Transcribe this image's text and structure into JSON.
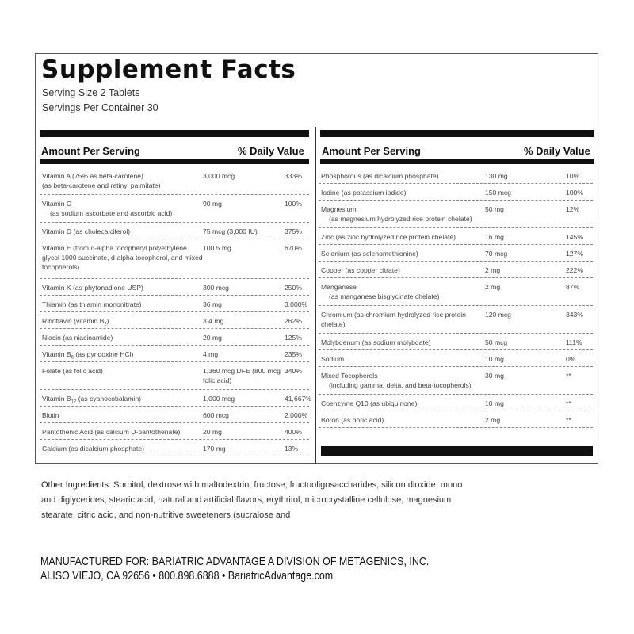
{
  "title": "Supplement Facts",
  "serving_size": "Serving Size  2 Tablets",
  "servings_per_container": "Servings Per Container  30",
  "headers": {
    "amount": "Amount Per Serving",
    "dv": "% Daily Value"
  },
  "left_rows": [
    {
      "name": "Vitamin A (75% as beta-carotene)",
      "sub_line": "(as beta-carotene and retinyl palmitate)",
      "amount": "3,000 mcg",
      "dv": "333%",
      "lines": 2
    },
    {
      "name": "Vitamin C",
      "sub_line": "(as sodium ascorbate and ascorbic acid)",
      "indent": true,
      "amount": "90 mg",
      "dv": "100%",
      "lines": 2
    },
    {
      "name": "Vitamin D (as cholecalciferol)",
      "amount": "75 mcg (3,000 IU)",
      "dv": "375%",
      "lines": 1
    },
    {
      "name": "Vitamin E (from d-alpha tocopheryl polyethylene glycol 1000 succinate, d-alpha tocopherol, and mixed tocopherols)",
      "amount": "100.5 mg",
      "dv": "670%",
      "lines": 3
    },
    {
      "name": "Vitamin K (as phytonadione USP)",
      "amount": "300 mcg",
      "dv": "250%",
      "lines": 1
    },
    {
      "name": "Thiamin (as thiamin mononitrate)",
      "amount": "36 mg",
      "dv": "3,000%",
      "lines": 1
    },
    {
      "name": "Riboflavin (vitamin B",
      "sub": "2",
      "name_end": ")",
      "amount": "3.4 mg",
      "dv": "262%",
      "lines": 1
    },
    {
      "name": "Niacin (as niacinamide)",
      "amount": "20 mg",
      "dv": "125%",
      "lines": 1
    },
    {
      "name": "Vitamin B",
      "sub": "6",
      "name_end": " (as pyridoxine HCl)",
      "amount": "4 mg",
      "dv": "235%",
      "lines": 1
    },
    {
      "name": "Folate (as folic acid)",
      "amount": "1,360 mcg DFE (800 mcg folic acid)",
      "dv": "340%",
      "lines": 2
    },
    {
      "name": "Vitamin B",
      "sub": "12",
      "name_end": " (as cyanocobalamin)",
      "amount": "1,000 mcg",
      "dv": "41,667%",
      "lines": 1
    },
    {
      "name": "Biotin",
      "amount": "600 mcg",
      "dv": "2,000%",
      "lines": 1
    },
    {
      "name": "Pantothenic Acid (as calcium D-pantothenate)",
      "amount": "20 mg",
      "dv": "400%",
      "lines": 1
    },
    {
      "name": "Calcium (as dicalcium phosphate)",
      "amount": "170 mg",
      "dv": "13%",
      "lines": 1
    }
  ],
  "right_rows": [
    {
      "name": "Phosphorous (as dicalcium phosphate)",
      "amount": "130 mg",
      "dv": "10%",
      "lines": 1
    },
    {
      "name": "Iodine (as potassium iodide)",
      "amount": "150 mcg",
      "dv": "100%",
      "lines": 1
    },
    {
      "name": "Magnesium",
      "sub_line": "(as magnesium hydrolyzed rice protein chelate)",
      "indent": true,
      "amount": "50 mg",
      "dv": "12%",
      "lines": 2
    },
    {
      "name": "Zinc (as zinc hydrolyzed rice protein chelate)",
      "amount": "16 mg",
      "dv": "145%",
      "lines": 1
    },
    {
      "name": "Selenium (as selenomethionine)",
      "amount": "70 mcg",
      "dv": "127%",
      "lines": 1
    },
    {
      "name": "Copper (as copper citrate)",
      "amount": "2 mg",
      "dv": "222%",
      "lines": 1
    },
    {
      "name": "Manganese",
      "sub_line": "(as manganese bisglycinate chelate)",
      "indent": true,
      "amount": "2 mg",
      "dv": "87%",
      "lines": 2
    },
    {
      "name": "Chromium (as chromium hydrolyzed rice protein chelate)",
      "amount": "120 mcg",
      "dv": "343%",
      "lines": 2
    },
    {
      "name": "Molybdenum (as sodium molybdate)",
      "amount": "50 mcg",
      "dv": "111%",
      "lines": 1
    },
    {
      "name": "Sodium",
      "amount": "10 mg",
      "dv": "0%",
      "lines": 1
    },
    {
      "name": "Mixed Tocopherols",
      "sub_line": "(including gamma, delta, and beta-tocopherols)",
      "indent": true,
      "amount": "30 mg",
      "dv": "**",
      "lines": 2
    },
    {
      "name": "Coenzyme Q10 (as ubiquinone)",
      "amount": "10 mg",
      "dv": "**",
      "lines": 1
    },
    {
      "name": "Boron (as boric acid)",
      "amount": "2 mg",
      "dv": "**",
      "lines": 1
    }
  ],
  "other_ingredients": {
    "label": "Other Ingredients:",
    "text": " Sorbitol, dextrose with maltodextrin, fructose, fructooligosaccharides, silicon dioxide, mono and diglycerides, stearic acid, natural and artificial flavors, erythritol, microcrystalline cellulose, magnesium stearate, citric acid, and non-nutritive sweeteners (sucralose and"
  },
  "manufacturer": {
    "line1": "MANUFACTURED FOR: BARIATRIC ADVANTAGE A DIVISION OF METAGENICS, INC.",
    "line2": "ALISO VIEJO, CA 92656 • 800.898.6888 • BariatricAdvantage.com"
  }
}
